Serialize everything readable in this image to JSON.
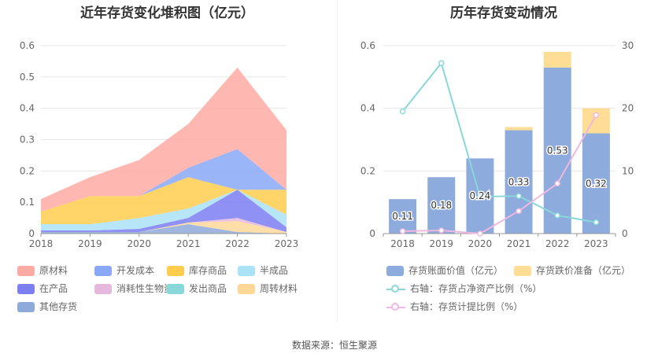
{
  "left_title": "近年存货变化堆积图（亿元）",
  "right_title": "历年存货变动情况",
  "source": "数据来源：恒生聚源",
  "chart_data": [
    {
      "type": "area",
      "title": "近年存货变化堆积图（亿元）",
      "stacked": true,
      "x": [
        "2018",
        "2019",
        "2020",
        "2021",
        "2022",
        "2023"
      ],
      "ylim": [
        0,
        0.6
      ],
      "yticks": [
        "0",
        "0.1",
        "0.2",
        "0.3",
        "0.4",
        "0.5",
        "0.6"
      ],
      "grid": true,
      "legend_position": "bottom",
      "series": [
        {
          "name": "其他存货",
          "color": "#8eaadb",
          "values": [
            0.005,
            0.005,
            0.005,
            0.03,
            0.005,
            0.0
          ]
        },
        {
          "name": "周转材料",
          "color": "#ffd898",
          "values": [
            0.0,
            0.0,
            0.0,
            0.005,
            0.035,
            0.005
          ]
        },
        {
          "name": "发出商品",
          "color": "#88d8da",
          "values": [
            0.0,
            0.0,
            0.0,
            0.0,
            0.0,
            0.0
          ]
        },
        {
          "name": "消耗性生物资产",
          "color": "#e6b8de",
          "values": [
            0.0,
            0.0,
            0.0,
            0.0,
            0.01,
            0.0
          ]
        },
        {
          "name": "在产品",
          "color": "#7b7ff2",
          "values": [
            0.005,
            0.005,
            0.01,
            0.015,
            0.09,
            0.015
          ]
        },
        {
          "name": "半成品",
          "color": "#aae2f8",
          "values": [
            0.02,
            0.02,
            0.035,
            0.03,
            0.0,
            0.04
          ]
        },
        {
          "name": "库存商品",
          "color": "#ffcc4d",
          "values": [
            0.04,
            0.09,
            0.07,
            0.1,
            0.0,
            0.08
          ]
        },
        {
          "name": "开发成本",
          "color": "#8aa8f8",
          "values": [
            0.0,
            0.0,
            0.0,
            0.03,
            0.13,
            0.0
          ]
        },
        {
          "name": "原材料",
          "color": "#ffaaa3",
          "values": [
            0.04,
            0.06,
            0.115,
            0.14,
            0.26,
            0.19
          ]
        }
      ],
      "legend_order": [
        "原材料",
        "开发成本",
        "库存商品",
        "半成品",
        "在产品",
        "消耗性生物资产",
        "发出商品",
        "周转材料",
        "其他存货"
      ]
    },
    {
      "type": "bar",
      "title": "历年存货变动情况",
      "stacked": true,
      "categories": [
        "2018",
        "2019",
        "2020",
        "2021",
        "2022",
        "2023"
      ],
      "ylim": [
        0,
        0.6
      ],
      "yticks": [
        "0",
        "0.2",
        "0.4",
        "0.6"
      ],
      "y2lim": [
        0,
        30
      ],
      "y2ticks": [
        "0",
        "10",
        "20",
        "30"
      ],
      "grid": true,
      "legend_position": "bottom",
      "series": [
        {
          "name": "存货账面价值（亿元）",
          "color": "#8dabdc",
          "values": [
            0.11,
            0.18,
            0.24,
            0.33,
            0.53,
            0.32
          ],
          "labels": [
            "0.11",
            "0.18",
            "0.24",
            "0.33",
            "0.53",
            "0.32"
          ]
        },
        {
          "name": "存货跌价准备（亿元）",
          "color": "#ffdd95",
          "values": [
            0.0,
            0.0,
            0.0,
            0.01,
            0.05,
            0.08
          ]
        }
      ],
      "line_series": [
        {
          "name": "右轴：存货占净资产比例（%）",
          "color": "#88d8da",
          "values": [
            19.5,
            27.2,
            5.9,
            6.0,
            2.9,
            1.8
          ]
        },
        {
          "name": "右轴：存货计提比例（%）",
          "color": "#f0b8e0",
          "values": [
            0.4,
            0.5,
            0.0,
            3.6,
            8.0,
            18.9
          ]
        }
      ]
    }
  ]
}
